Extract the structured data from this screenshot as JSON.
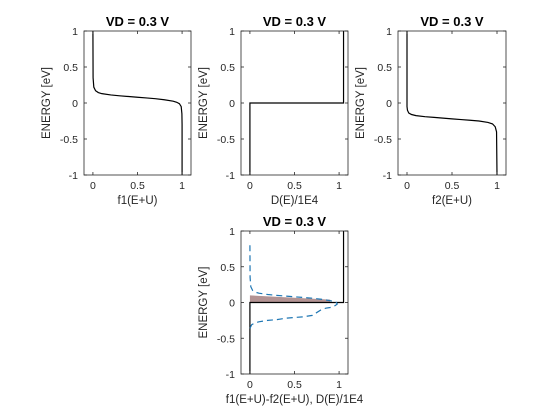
{
  "chart_data": [
    {
      "type": "line",
      "title": "VD = 0.3 V",
      "xlabel": "f1(E+U)",
      "ylabel": "ENERGY  [eV]",
      "xlim": [
        -0.1,
        1.1
      ],
      "ylim": [
        -1,
        1
      ],
      "xticks": [
        "0",
        "0.5",
        "1"
      ],
      "yticks": [
        "-1",
        "-0.5",
        "0",
        "0.5",
        "1"
      ],
      "series": [
        {
          "color": "#000000",
          "style": "solid",
          "x": [
            0,
            0.002,
            0.01,
            0.03,
            0.06,
            0.1,
            0.2,
            0.3,
            0.4,
            0.5,
            0.6,
            0.7,
            0.8,
            0.9,
            0.94,
            0.97,
            0.99,
            0.998,
            1,
            1
          ],
          "y": [
            1,
            0.35,
            0.22,
            0.17,
            0.145,
            0.13,
            0.112,
            0.1,
            0.09,
            0.08,
            0.07,
            0.06,
            0.045,
            0.025,
            0.01,
            -0.01,
            -0.05,
            -0.15,
            -0.3,
            -1
          ]
        }
      ]
    },
    {
      "type": "line",
      "title": "VD = 0.3 V",
      "xlabel": "D(E)/1E4",
      "ylabel": "ENERGY  [eV]",
      "xlim": [
        -0.1,
        1.1
      ],
      "ylim": [
        -1,
        1
      ],
      "xticks": [
        "0",
        "0.5",
        "1"
      ],
      "yticks": [
        "-1",
        "-0.5",
        "0",
        "0.5",
        "1"
      ],
      "series": [
        {
          "color": "#000000",
          "style": "solid",
          "x": [
            0,
            0,
            1.05,
            1.05
          ],
          "y": [
            -1,
            0,
            0,
            1
          ]
        }
      ]
    },
    {
      "type": "line",
      "title": "VD = 0.3 V",
      "xlabel": "f2(E+U)",
      "ylabel": "ENERGY  [eV]",
      "xlim": [
        -0.1,
        1.1
      ],
      "ylim": [
        -1,
        1
      ],
      "xticks": [
        "0",
        "0.5",
        "1"
      ],
      "yticks": [
        "-1",
        "-0.5",
        "0",
        "0.5",
        "1"
      ],
      "series": [
        {
          "color": "#000000",
          "style": "solid",
          "x": [
            0,
            0,
            0.005,
            0.02,
            0.05,
            0.1,
            0.2,
            0.3,
            0.4,
            0.5,
            0.6,
            0.7,
            0.8,
            0.9,
            0.95,
            0.98,
            0.995,
            1
          ],
          "y": [
            1,
            -0.05,
            -0.1,
            -0.14,
            -0.16,
            -0.175,
            -0.19,
            -0.2,
            -0.21,
            -0.22,
            -0.23,
            -0.24,
            -0.25,
            -0.27,
            -0.29,
            -0.33,
            -0.4,
            -1
          ]
        }
      ]
    },
    {
      "type": "line",
      "title": "VD = 0.3 V",
      "xlabel": "f1(E+U)-f2(E+U), D(E)/1E4",
      "ylabel": "ENERGY  [eV]",
      "xlim": [
        -0.1,
        1.1
      ],
      "ylim": [
        -1,
        1
      ],
      "xticks": [
        "0",
        "0.5",
        "1"
      ],
      "yticks": [
        "-1",
        "-0.5",
        "0",
        "0.5",
        "1"
      ],
      "shaded_band": {
        "x_start": 0,
        "x_end": 0.9,
        "y_top_start": 0.1,
        "y_top_end": 0.04,
        "y_bottom": 0,
        "color": "#a07878"
      },
      "series": [
        {
          "color": "#000000",
          "style": "solid",
          "x": [
            0,
            0,
            1.05,
            1.05
          ],
          "y": [
            -1,
            0,
            0,
            1
          ]
        },
        {
          "color": "#1f77b4",
          "style": "dashed",
          "x": [
            0,
            0.002,
            0.01,
            0.03,
            0.06,
            0.1,
            0.2,
            0.3,
            0.4,
            0.5,
            0.6,
            0.7,
            0.8,
            0.88,
            0.92,
            0.95,
            0.97,
            0.98,
            0.96,
            0.93,
            0.9,
            0.85,
            0.8,
            0.7,
            0.6,
            0.5,
            0.4,
            0.3,
            0.2,
            0.1,
            0.05,
            0.02,
            0.005,
            0
          ],
          "y": [
            0.8,
            0.35,
            0.22,
            0.17,
            0.145,
            0.13,
            0.112,
            0.1,
            0.09,
            0.08,
            0.07,
            0.06,
            0.045,
            0.03,
            0.02,
            0.01,
            0,
            -0.02,
            -0.04,
            -0.06,
            -0.07,
            -0.08,
            -0.1,
            -0.18,
            -0.2,
            -0.21,
            -0.22,
            -0.24,
            -0.25,
            -0.27,
            -0.29,
            -0.31,
            -0.35,
            -0.4
          ]
        }
      ]
    }
  ]
}
